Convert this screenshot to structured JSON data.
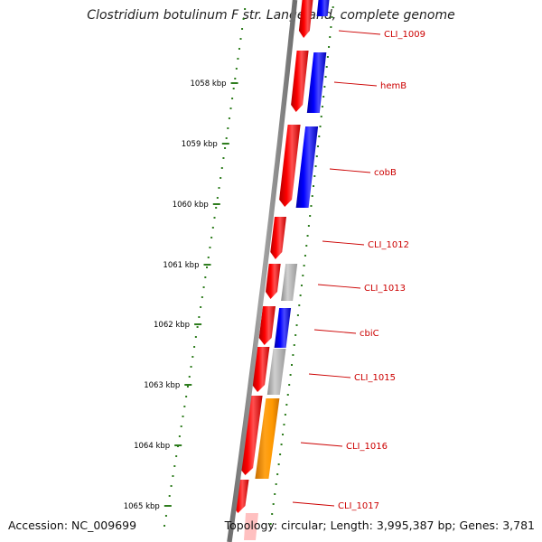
{
  "title": "Clostridium botulinum F str. Langeland, complete genome",
  "footer": {
    "accession": "Accession: NC_009699",
    "stats": "Topology: circular; Length: 3,995,387 bp; Genes: 3,781"
  },
  "colors": {
    "backbone": "#8a8a8a",
    "tick": "#2e7d1e",
    "label": "#cc0000",
    "gene_red": "#ff0000",
    "gene_blue": "#0000ff",
    "gene_gray": "#b8b8b8",
    "gene_orange": "#ff9900"
  },
  "scale": {
    "unit": "kbp",
    "labels": [
      "1058 kbp",
      "1059 kbp",
      "1060 kbp",
      "1061 kbp",
      "1062 kbp",
      "1063 kbp",
      "1064 kbp",
      "1065 kbp"
    ]
  },
  "genes": [
    {
      "label": "CLI_1009",
      "color": "red",
      "strand": "forward"
    },
    {
      "label": "CLI_1009",
      "color": "blue",
      "strand": "reverse"
    },
    {
      "label": "hemB",
      "color": "red",
      "strand": "forward"
    },
    {
      "label": "hemB",
      "color": "blue",
      "strand": "reverse"
    },
    {
      "label": "cobB",
      "color": "red",
      "strand": "forward"
    },
    {
      "label": "cobB",
      "color": "blue",
      "strand": "reverse"
    },
    {
      "label": "CLI_1012",
      "color": "red",
      "strand": "forward"
    },
    {
      "label": "CLI_1013",
      "color": "red",
      "strand": "forward"
    },
    {
      "label": "CLI_1013",
      "color": "gray",
      "strand": "reverse"
    },
    {
      "label": "cbiC",
      "color": "red",
      "strand": "forward"
    },
    {
      "label": "cbiC",
      "color": "blue",
      "strand": "reverse"
    },
    {
      "label": "CLI_1015",
      "color": "red",
      "strand": "forward"
    },
    {
      "label": "CLI_1015",
      "color": "gray",
      "strand": "reverse"
    },
    {
      "label": "CLI_1016",
      "color": "red",
      "strand": "forward"
    },
    {
      "label": "CLI_1016",
      "color": "orange",
      "strand": "reverse"
    },
    {
      "label": "CLI_1017",
      "color": "red",
      "strand": "forward"
    }
  ],
  "gene_labels": [
    "CLI_1009",
    "hemB",
    "cobB",
    "CLI_1012",
    "CLI_1013",
    "cbiC",
    "CLI_1015",
    "CLI_1016",
    "CLI_1017"
  ]
}
